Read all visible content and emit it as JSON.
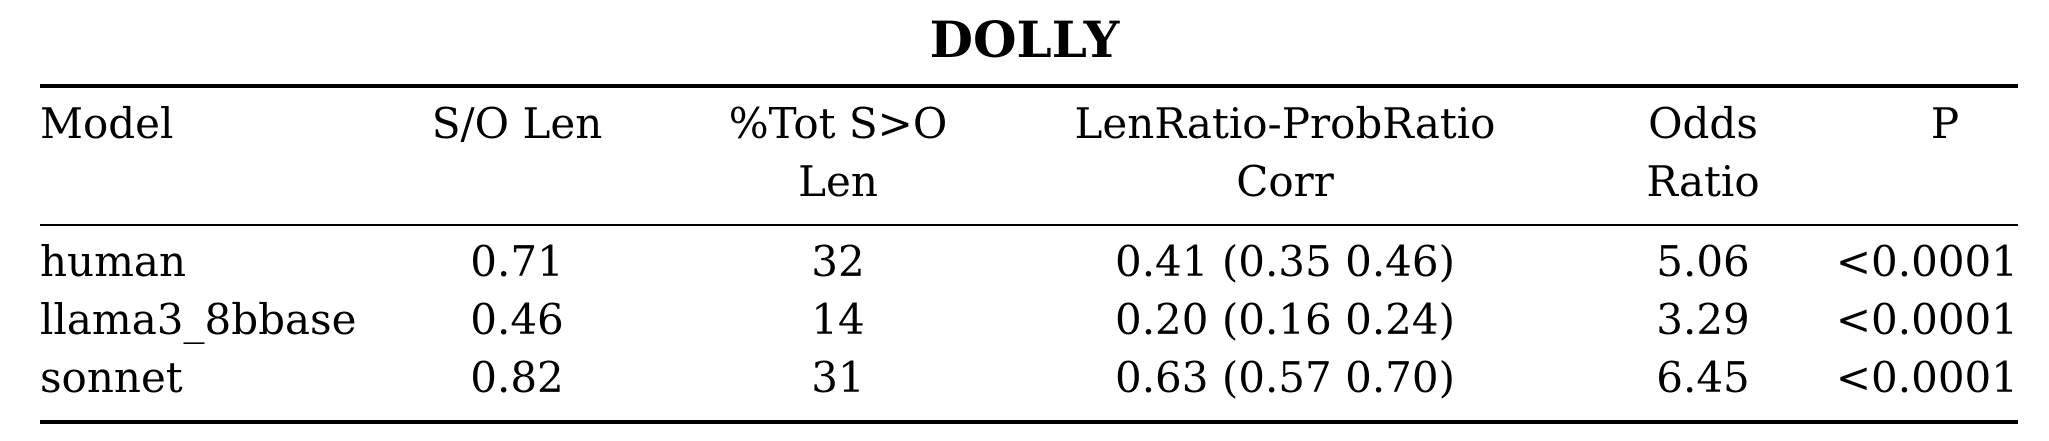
{
  "title": "DOLLY",
  "table": {
    "headers": [
      [
        "Model"
      ],
      [
        "S/O Len"
      ],
      [
        "%Tot S>O",
        "Len"
      ],
      [
        "LenRatio-ProbRatio",
        "Corr"
      ],
      [
        "Odds",
        "Ratio"
      ],
      [
        "P"
      ]
    ],
    "rows": [
      [
        "human",
        "0.71",
        "32",
        "0.41 (0.35 0.46)",
        "5.06",
        "<0.0001"
      ],
      [
        "llama3_8bbase",
        "0.46",
        "14",
        "0.20 (0.16 0.24)",
        "3.29",
        "<0.0001"
      ],
      [
        "sonnet",
        "0.82",
        "31",
        "0.63 (0.57 0.70)",
        "6.45",
        "<0.0001"
      ]
    ]
  }
}
